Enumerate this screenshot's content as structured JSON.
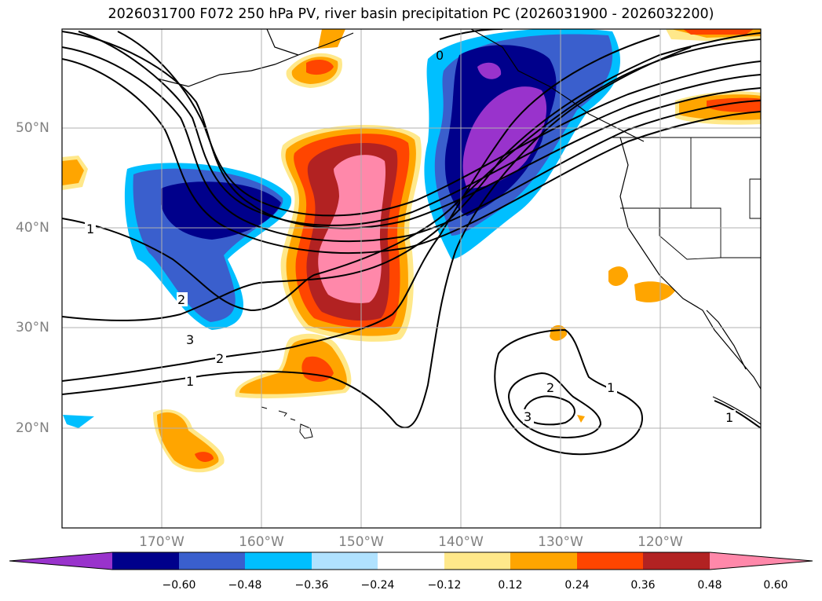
{
  "title": "2026031700 F072 250 hPa PV, river basin precipitation PC (2026031900 - 2026032200)",
  "lat_labels": [
    "50°N",
    "40°N",
    "30°N",
    "20°N"
  ],
  "lon_labels": [
    "170°W",
    "160°W",
    "150°W",
    "140°W",
    "130°W",
    "120°W"
  ],
  "contour_labels": [
    "1",
    "2",
    "3",
    "2",
    "1",
    "0",
    "2",
    "1",
    "3",
    "1"
  ],
  "colorbar": {
    "ticks": [
      "−0.60",
      "−0.48",
      "−0.36",
      "−0.24",
      "−0.12",
      "0.12",
      "0.24",
      "0.36",
      "0.48",
      "0.60"
    ],
    "colors": [
      "#9933cc",
      "#00008b",
      "#3a5fcd",
      "#00bfff",
      "#b0e2ff",
      "#ffffff",
      "#ffe88a",
      "#ffa500",
      "#ff4500",
      "#b22222",
      "#ff88aa"
    ]
  }
}
